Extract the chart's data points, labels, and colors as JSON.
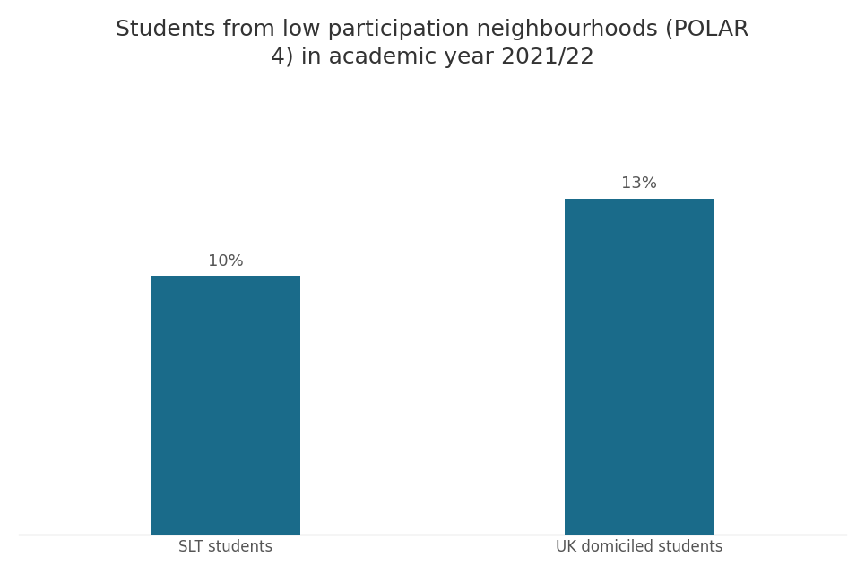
{
  "categories": [
    "SLT students",
    "UK domiciled students"
  ],
  "values": [
    10,
    13
  ],
  "labels": [
    "10%",
    "13%"
  ],
  "bar_color": "#1a6b8a",
  "title": "Students from low participation neighbourhoods (POLAR\n4) in academic year 2021/22",
  "title_fontsize": 18,
  "label_fontsize": 13,
  "tick_fontsize": 12,
  "background_color": "#ffffff",
  "bar_width": 0.18,
  "ylim": [
    0,
    17
  ],
  "x_positions": [
    0.25,
    0.75
  ],
  "xlim": [
    0,
    1
  ]
}
